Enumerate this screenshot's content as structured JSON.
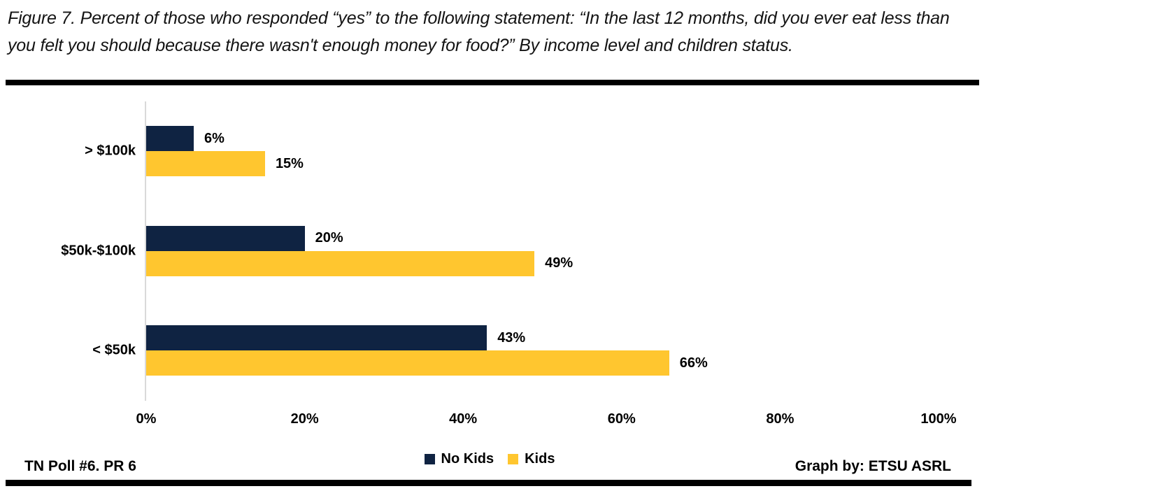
{
  "title": {
    "line1": "Figure 7. Percent of those who responded “yes” to the following statement: “In the last 12 months, did you ever eat less than",
    "line2": "you felt you should because there wasn't enough money for food?” By income level and children status."
  },
  "chart_data": {
    "type": "bar",
    "orientation": "horizontal",
    "title": "Figure 7. Percent of those who responded “yes” to the following statement: “In the last 12 months, did you ever eat less than you felt you should because there wasn't enough money for food?” By income level and children status.",
    "categories": [
      "> $100k",
      "$50k-$100k",
      "< $50k"
    ],
    "series": [
      {
        "name": "No Kids",
        "color": "#0f2342",
        "values": [
          6,
          20,
          43
        ]
      },
      {
        "name": "Kids",
        "color": "#ffc62f",
        "values": [
          15,
          49,
          66
        ]
      }
    ],
    "value_suffix": "%",
    "data_labels": true,
    "x_ticks": [
      0,
      20,
      40,
      60,
      80,
      100
    ],
    "x_tick_labels": [
      "0%",
      "20%",
      "40%",
      "60%",
      "80%",
      "100%"
    ],
    "xlim": [
      0,
      100
    ],
    "grid": false,
    "legend_position": "bottom-center"
  },
  "footer": {
    "left": "TN Poll #6. PR 6",
    "right": "Graph by: ETSU ASRL"
  },
  "colors": {
    "no_kids_bar": "#0f2342",
    "kids_bar": "#ffc62f",
    "axis_line": "#d9d9d9",
    "rule": "#000000",
    "text": "#000000"
  }
}
